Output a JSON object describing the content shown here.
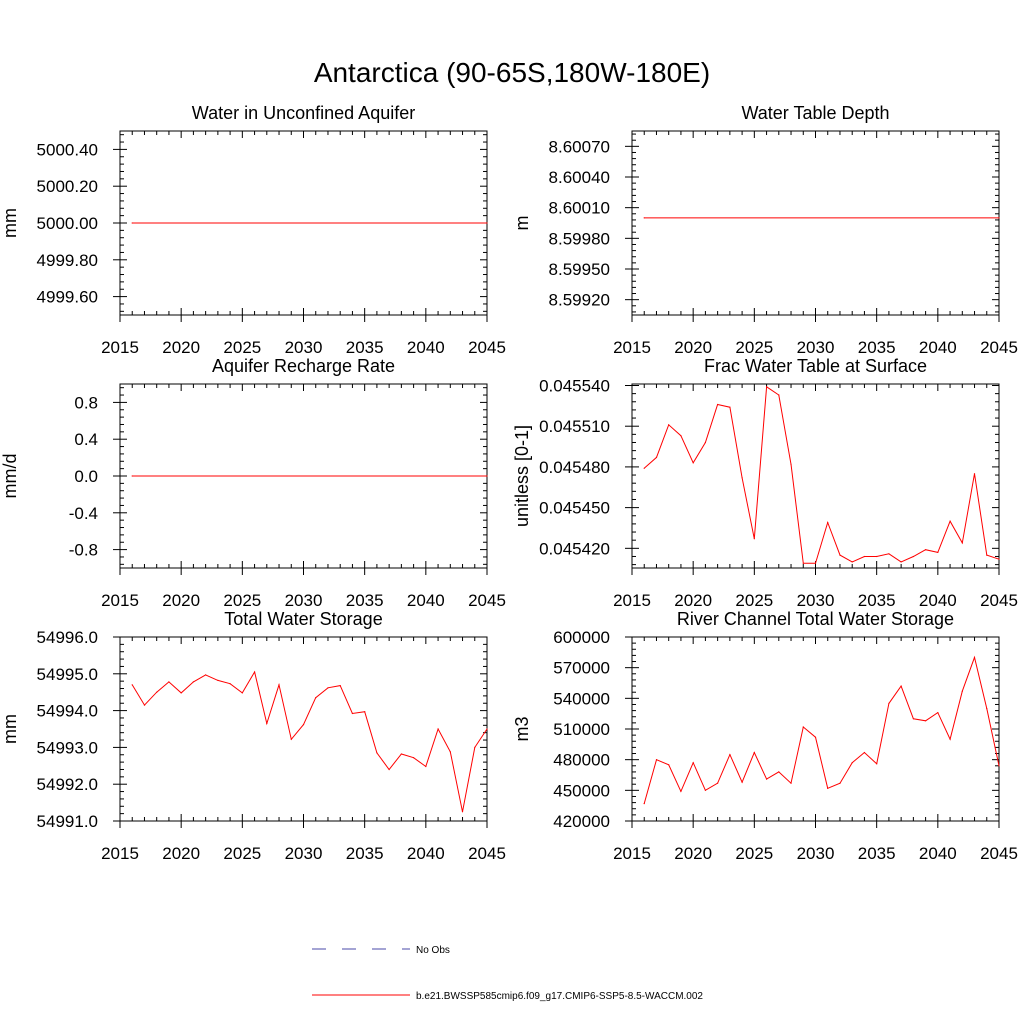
{
  "figure": {
    "title": "Antarctica (90-65S,180W-180E)"
  },
  "legend": {
    "entries": [
      {
        "label": "No Obs",
        "color": "#4a4aa8",
        "style": "dashed"
      },
      {
        "label": "b.e21.BWSSP585cmip6.f09_g17.CMIP6-SSP5-8.5-WACCM.002",
        "color": "#ff0000",
        "style": "solid"
      }
    ]
  },
  "chart_data": [
    {
      "type": "line",
      "title": "Water in Unconfined Aquifer",
      "ylabel": "mm",
      "xlim": [
        2015,
        2045
      ],
      "ylim": [
        4999.5,
        5000.5
      ],
      "xticks": [
        2015,
        2020,
        2025,
        2030,
        2035,
        2040,
        2045
      ],
      "yticks": [
        4999.6,
        4999.8,
        5000.0,
        5000.2,
        5000.4
      ],
      "ytick_labels": [
        "4999.60",
        "4999.80",
        "5000.00",
        "5000.20",
        "5000.40"
      ],
      "x": [
        2016,
        2045
      ],
      "series": [
        {
          "values": [
            5000.0,
            5000.0
          ],
          "color": "#ff0000"
        }
      ]
    },
    {
      "type": "line",
      "title": "Water Table Depth",
      "ylabel": "m",
      "xlim": [
        2015,
        2045
      ],
      "ylim": [
        8.59905,
        8.60085
      ],
      "xticks": [
        2015,
        2020,
        2025,
        2030,
        2035,
        2040,
        2045
      ],
      "yticks": [
        8.5992,
        8.5995,
        8.5998,
        8.6001,
        8.6004,
        8.6007
      ],
      "ytick_labels": [
        "8.59920",
        "8.59950",
        "8.59980",
        "8.60010",
        "8.60040",
        "8.60070"
      ],
      "x": [
        2016,
        2045
      ],
      "series": [
        {
          "values": [
            8.6,
            8.6
          ],
          "color": "#ff0000"
        }
      ]
    },
    {
      "type": "line",
      "title": "Aquifer Recharge Rate",
      "ylabel": "mm/d",
      "xlim": [
        2015,
        2045
      ],
      "ylim": [
        -1.0,
        1.0
      ],
      "xticks": [
        2015,
        2020,
        2025,
        2030,
        2035,
        2040,
        2045
      ],
      "yticks": [
        -0.8,
        -0.4,
        0.0,
        0.4,
        0.8
      ],
      "ytick_labels": [
        "-0.8",
        "-0.4",
        "0.0",
        "0.4",
        "0.8"
      ],
      "x": [
        2016,
        2045
      ],
      "series": [
        {
          "values": [
            0.0,
            0.0
          ],
          "color": "#ff0000"
        }
      ]
    },
    {
      "type": "line",
      "title": "Frac Water Table at Surface",
      "ylabel": "unitless [0-1]",
      "xlim": [
        2015,
        2045
      ],
      "ylim": [
        0.0454055,
        0.0455411
      ],
      "xticks": [
        2015,
        2020,
        2025,
        2030,
        2035,
        2040,
        2045
      ],
      "yticks": [
        0.04542,
        0.04545,
        0.04548,
        0.04551,
        0.04554
      ],
      "ytick_labels": [
        "0.045420",
        "0.045450",
        "0.045480",
        "0.045510",
        "0.045540"
      ],
      "x": [
        2016,
        2017,
        2018,
        2019,
        2020,
        2021,
        2022,
        2023,
        2024,
        2025,
        2026,
        2027,
        2028,
        2029,
        2030,
        2031,
        2032,
        2033,
        2034,
        2035,
        2036,
        2037,
        2038,
        2039,
        2040,
        2041,
        2042,
        2043,
        2044,
        2045
      ],
      "series": [
        {
          "values": [
            0.045479,
            0.045487,
            0.045511,
            0.045503,
            0.045483,
            0.045498,
            0.045526,
            0.045524,
            0.045472,
            0.045427,
            0.045539,
            0.045533,
            0.045482,
            0.045409,
            0.045409,
            0.045439,
            0.045415,
            0.04541,
            0.045414,
            0.045414,
            0.045416,
            0.04541,
            0.045414,
            0.045419,
            0.045417,
            0.04544,
            0.045424,
            0.045475,
            0.045415,
            0.045412
          ],
          "color": "#ff0000"
        }
      ]
    },
    {
      "type": "line",
      "title": "Total Water Storage",
      "ylabel": "mm",
      "xlim": [
        2015,
        2045
      ],
      "ylim": [
        54991.0,
        54996.0
      ],
      "xticks": [
        2015,
        2020,
        2025,
        2030,
        2035,
        2040,
        2045
      ],
      "yticks": [
        54991.0,
        54992.0,
        54993.0,
        54994.0,
        54995.0,
        54996.0
      ],
      "ytick_labels": [
        "54991.0",
        "54992.0",
        "54993.0",
        "54994.0",
        "54995.0",
        "54996.0"
      ],
      "x": [
        2016,
        2017,
        2018,
        2019,
        2020,
        2021,
        2022,
        2023,
        2024,
        2025,
        2026,
        2027,
        2028,
        2029,
        2030,
        2031,
        2032,
        2033,
        2034,
        2035,
        2036,
        2037,
        2038,
        2039,
        2040,
        2041,
        2042,
        2043,
        2044,
        2045
      ],
      "series": [
        {
          "values": [
            54994.7,
            54994.15,
            54994.5,
            54994.78,
            54994.48,
            54994.78,
            54994.97,
            54994.82,
            54994.73,
            54994.48,
            54995.05,
            54993.65,
            54994.7,
            54993.22,
            54993.62,
            54994.35,
            54994.62,
            54994.68,
            54993.92,
            54993.97,
            54992.85,
            54992.4,
            54992.82,
            54992.72,
            54992.48,
            54993.5,
            54992.88,
            54991.25,
            54993.0,
            54993.5
          ],
          "color": "#ff0000"
        }
      ]
    },
    {
      "type": "line",
      "title": "River Channel Total Water Storage",
      "ylabel": "m3",
      "xlim": [
        2015,
        2045
      ],
      "ylim": [
        420000,
        600000
      ],
      "xticks": [
        2015,
        2020,
        2025,
        2030,
        2035,
        2040,
        2045
      ],
      "yticks": [
        420000,
        450000,
        480000,
        510000,
        540000,
        570000,
        600000
      ],
      "ytick_labels": [
        "420000",
        "450000",
        "480000",
        "510000",
        "540000",
        "570000",
        "600000"
      ],
      "x": [
        2016,
        2017,
        2018,
        2019,
        2020,
        2021,
        2022,
        2023,
        2024,
        2025,
        2026,
        2027,
        2028,
        2029,
        2030,
        2031,
        2032,
        2033,
        2034,
        2035,
        2036,
        2037,
        2038,
        2039,
        2040,
        2041,
        2042,
        2043,
        2044,
        2045
      ],
      "series": [
        {
          "values": [
            437000,
            480000,
            475000,
            449000,
            477000,
            450000,
            457000,
            485000,
            458000,
            487000,
            461000,
            468000,
            457000,
            512000,
            502000,
            452000,
            457000,
            477000,
            487000,
            476000,
            535000,
            552000,
            520000,
            518000,
            526000,
            500000,
            547000,
            580000,
            530000,
            474000
          ],
          "color": "#ff0000"
        }
      ]
    }
  ]
}
